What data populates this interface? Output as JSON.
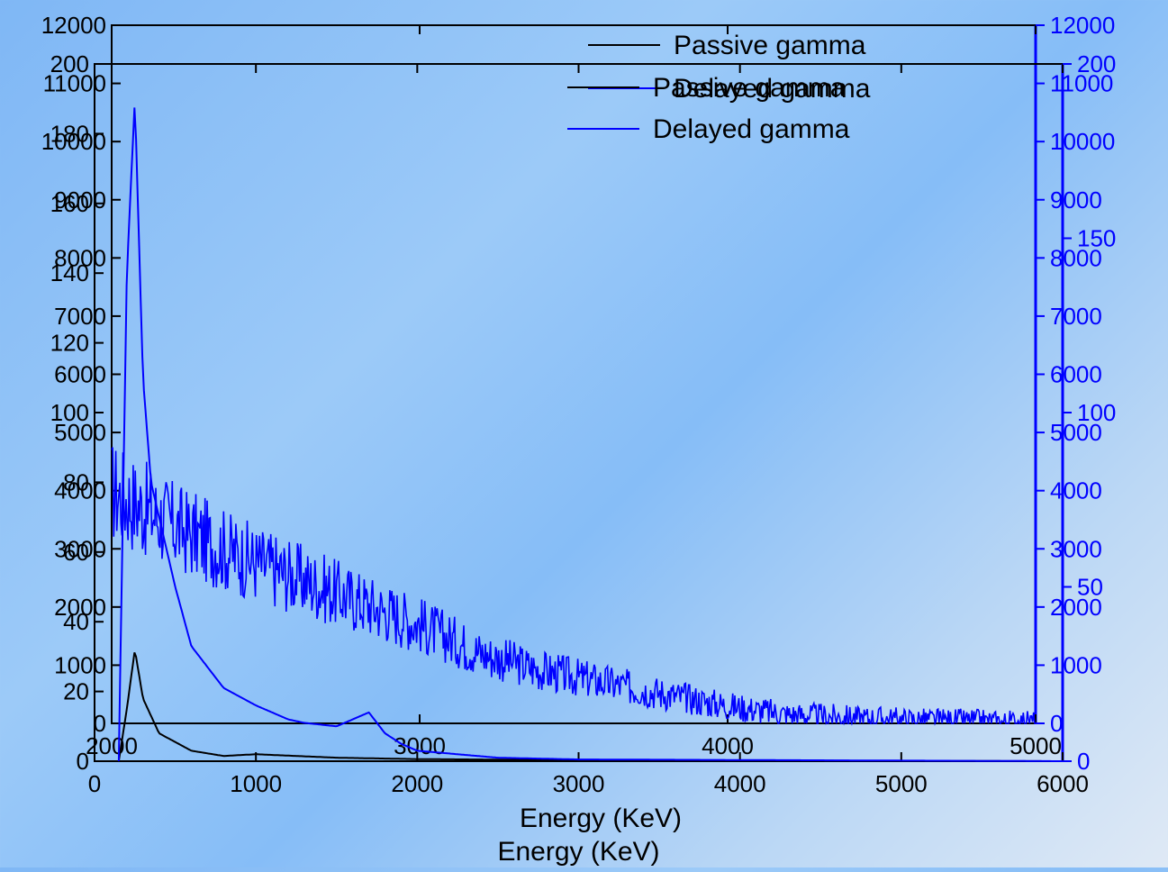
{
  "chart_data": [
    {
      "type": "line",
      "xlabel": "Energy (KeV)",
      "xlim": [
        2000,
        5000
      ],
      "xticks": [
        2000,
        3000,
        4000,
        5000
      ],
      "ylim": [
        0,
        12000
      ],
      "yticks": [
        0,
        1000,
        2000,
        3000,
        4000,
        5000,
        6000,
        7000,
        8000,
        9000,
        10000,
        11000,
        12000
      ],
      "y2lim": [
        0,
        12000
      ],
      "y2ticks": [
        0,
        1000,
        2000,
        3000,
        4000,
        5000,
        6000,
        7000,
        8000,
        9000,
        10000,
        11000,
        12000
      ],
      "legend": "top-right",
      "colors": {
        "passive": "#000000",
        "delayed": "#0000ff"
      },
      "series": [
        {
          "name": "Passive gamma",
          "axis": "left",
          "x": [
            2000,
            2500,
            3000,
            3500,
            4000,
            4500,
            5000
          ],
          "values": [
            0,
            0,
            0,
            0,
            0,
            0,
            0
          ]
        },
        {
          "name": "Delayed gamma",
          "axis": "right",
          "x": [
            2000,
            2200,
            2400,
            2600,
            2800,
            3000,
            3200,
            3400,
            3500,
            3600,
            3700,
            3800,
            4000,
            4200,
            4400,
            4600,
            4800,
            5000
          ],
          "values": [
            4000,
            3400,
            2900,
            2500,
            2100,
            1700,
            1200,
            900,
            800,
            700,
            600,
            500,
            300,
            150,
            100,
            60,
            40,
            20
          ]
        }
      ]
    },
    {
      "type": "line",
      "xlabel": "Energy (KeV)",
      "xlim": [
        0,
        6000
      ],
      "xticks": [
        0,
        1000,
        2000,
        3000,
        4000,
        5000,
        6000
      ],
      "ylim": [
        0,
        200
      ],
      "yticks": [
        0,
        20,
        40,
        60,
        80,
        100,
        120,
        140,
        160,
        180,
        200
      ],
      "y2lim": [
        0,
        200
      ],
      "y2ticks": [
        0,
        50,
        100,
        150,
        200
      ],
      "legend": "top-right",
      "colors": {
        "passive": "#000000",
        "delayed": "#0000ff"
      },
      "series": [
        {
          "name": "Passive gamma",
          "axis": "left",
          "x": [
            150,
            200,
            250,
            300,
            400,
            600,
            800,
            1000,
            1500,
            2000,
            3000,
            6000
          ],
          "values": [
            0,
            15,
            32,
            18,
            8,
            3,
            1.5,
            2,
            1,
            0.6,
            0.3,
            0
          ]
        },
        {
          "name": "Delayed gamma",
          "axis": "right",
          "x": [
            150,
            200,
            250,
            300,
            350,
            400,
            500,
            600,
            800,
            1000,
            1200,
            1300,
            1500,
            1700,
            1800,
            1900,
            2000,
            2500,
            3000,
            6000
          ],
          "values": [
            0,
            140,
            190,
            110,
            80,
            70,
            50,
            33,
            21,
            16,
            12,
            11,
            10,
            14,
            8,
            5,
            3,
            1,
            0.5,
            0
          ]
        }
      ]
    }
  ]
}
